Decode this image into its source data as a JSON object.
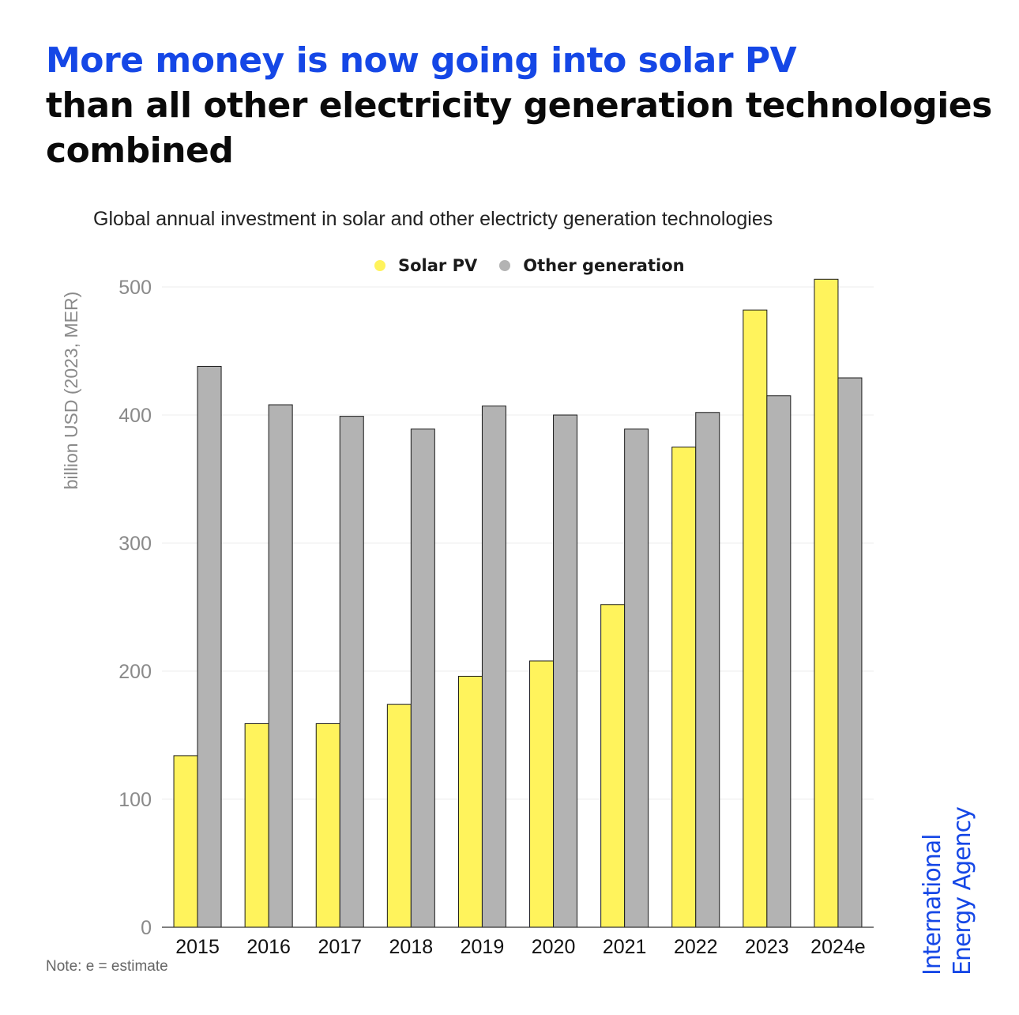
{
  "title": {
    "highlight": "More money is now going into solar PV",
    "rest": "than all other electricity generation technologies combined"
  },
  "subtitle": "Global annual investment in solar and other electricty generation technologies",
  "note": "Note: e = estimate",
  "logo": {
    "line1": "International",
    "line2": "Energy Agency",
    "color": "#1547e6"
  },
  "colors": {
    "solar": "#fff35c",
    "other": "#b3b3b3",
    "title_accent": "#1547e6"
  },
  "chart_data": {
    "type": "bar",
    "categories": [
      "2015",
      "2016",
      "2017",
      "2018",
      "2019",
      "2020",
      "2021",
      "2022",
      "2023",
      "2024e"
    ],
    "series": [
      {
        "name": "Solar PV",
        "color": "#fff35c",
        "values": [
          134,
          159,
          159,
          174,
          196,
          208,
          252,
          375,
          482,
          506
        ]
      },
      {
        "name": "Other generation",
        "color": "#b3b3b3",
        "values": [
          438,
          408,
          399,
          389,
          407,
          400,
          389,
          402,
          415,
          429
        ]
      }
    ],
    "ylabel": "billion USD (2023, MER)",
    "yticks": [
      0,
      100,
      200,
      300,
      400,
      500
    ],
    "ylim": [
      0,
      520
    ],
    "grid": true,
    "legend_position": "top-center"
  }
}
